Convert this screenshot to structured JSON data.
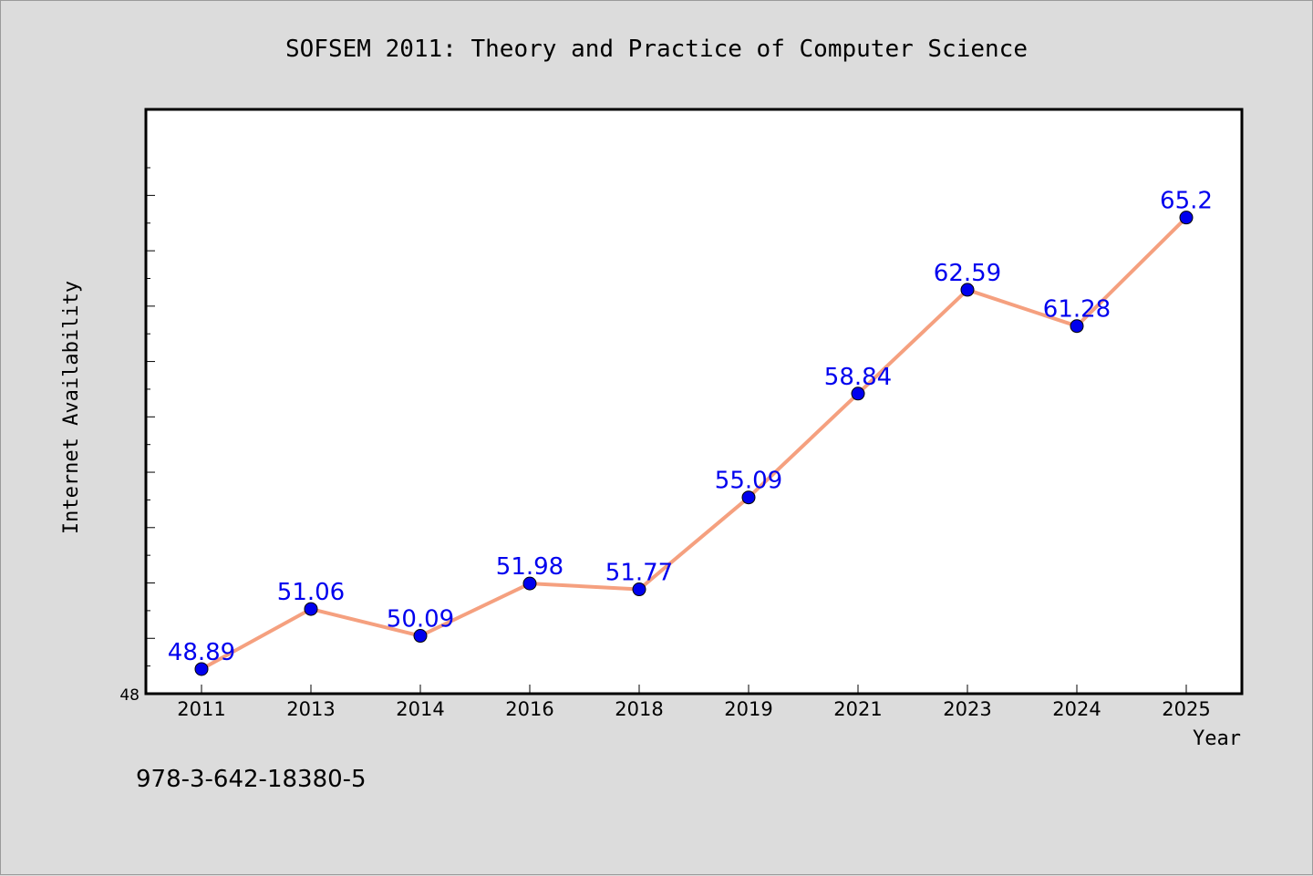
{
  "chart_data": {
    "type": "line",
    "title": "SOFSEM 2011: Theory and Practice of Computer Science",
    "xlabel": "Year",
    "ylabel": "Internet Availability",
    "categories": [
      "2011",
      "2013",
      "2014",
      "2016",
      "2018",
      "2019",
      "2021",
      "2023",
      "2024",
      "2025"
    ],
    "series": [
      {
        "values": [
          48.89,
          51.06,
          50.09,
          51.98,
          51.77,
          55.09,
          58.84,
          62.59,
          61.28,
          65.2
        ],
        "labels": [
          "48.89",
          "51.06",
          "50.09",
          "51.98",
          "51.77",
          "55.09",
          "58.84",
          "62.59",
          "61.28",
          "65.2"
        ]
      }
    ],
    "y_tick_label": "48",
    "ylim": [
      48,
      67
    ],
    "grid": false,
    "legend": "none",
    "colors": {
      "line": "#f5a07f",
      "marker": "#0000ee",
      "label": "#0000ee",
      "background": "#dcdcdc",
      "plot_background": "#ffffff"
    }
  },
  "footer_note": "978-3-642-18380-5"
}
